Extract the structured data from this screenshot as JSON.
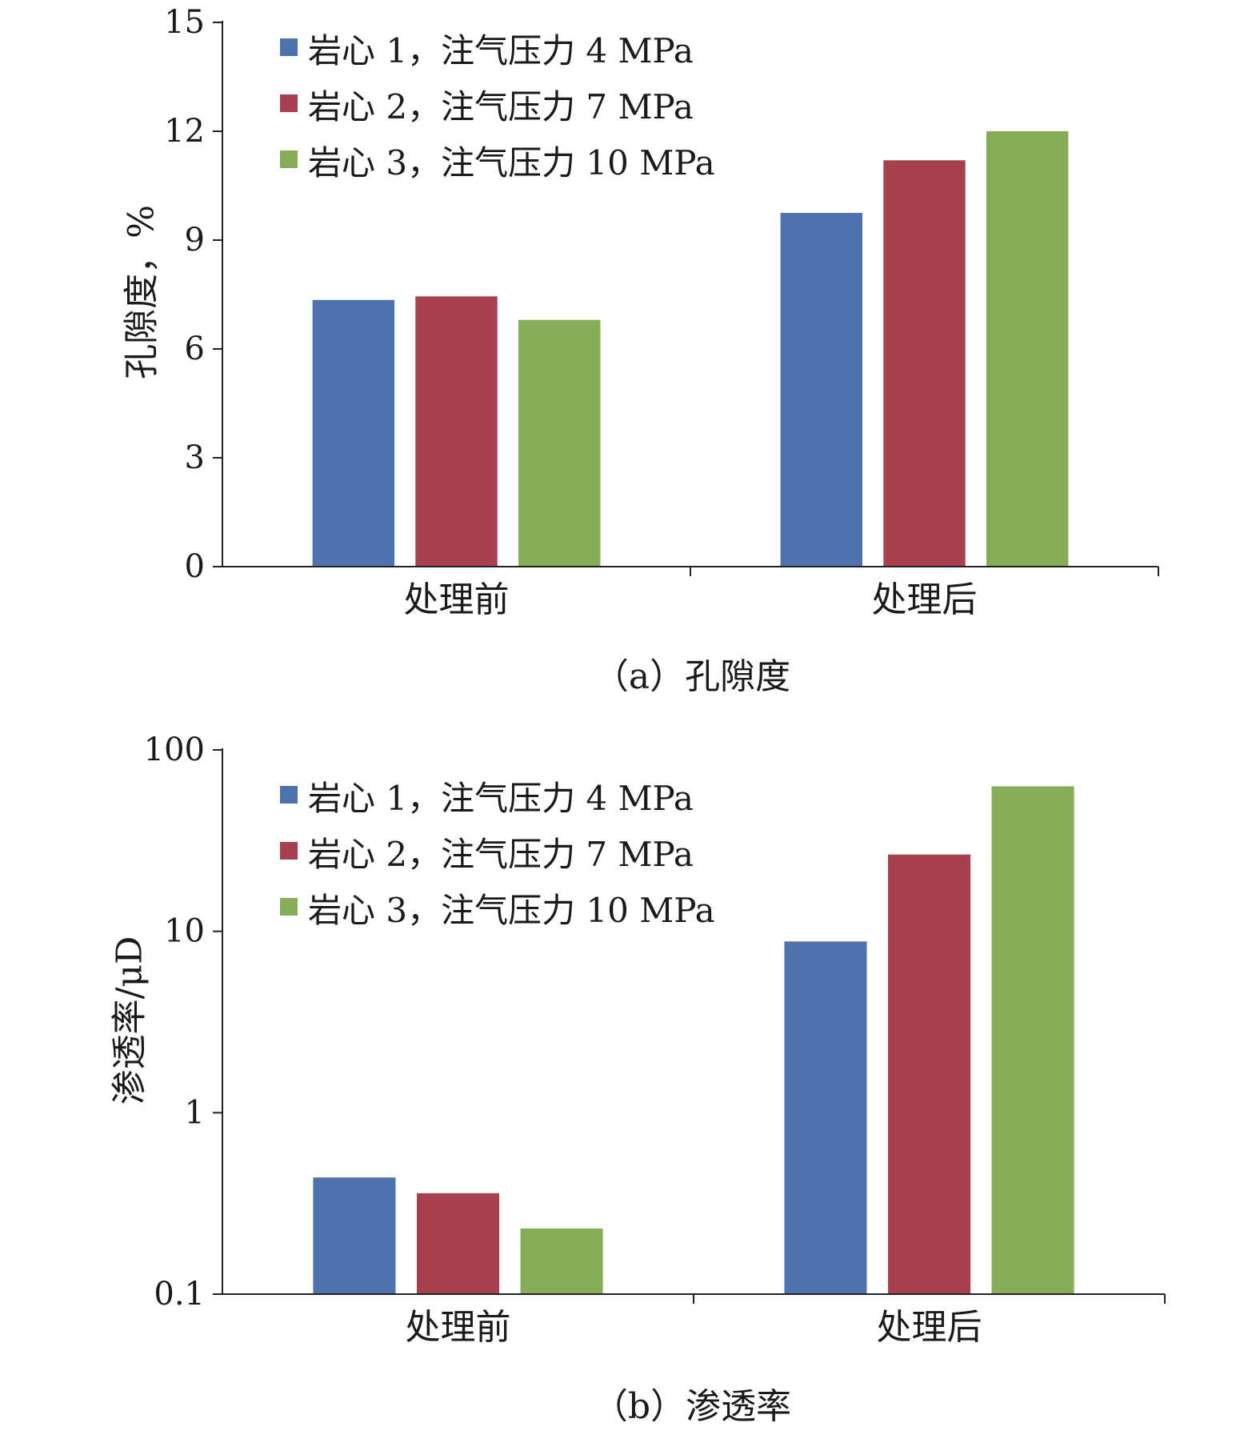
{
  "chart_data": [
    {
      "type": "bar",
      "caption": "（a）孔隙度",
      "categories": [
        "处理前",
        "处理后"
      ],
      "series": [
        {
          "name": "岩心 1，注气压力 4 MPa",
          "color": "#4e72ad",
          "values": [
            7.35,
            9.75
          ]
        },
        {
          "name": "岩心 2，注气压力 7 MPa",
          "color": "#a83f4e",
          "values": [
            7.45,
            11.2
          ]
        },
        {
          "name": "岩心 3，注气压力 10 MPa",
          "color": "#86ad55",
          "values": [
            6.8,
            12.0
          ]
        }
      ],
      "ylabel": "孔隙度，%",
      "ylim": [
        0,
        15
      ],
      "yscale": "linear",
      "yticks": [
        0,
        3,
        6,
        9,
        12,
        15
      ],
      "ytick_labels": [
        "0",
        "3",
        "6",
        "9",
        "12",
        "15"
      ],
      "legend_position": "top-left",
      "grid": false
    },
    {
      "type": "bar",
      "caption": "（b）渗透率",
      "categories": [
        "处理前",
        "处理后"
      ],
      "series": [
        {
          "name": "岩心 1，注气压力 4 MPa",
          "color": "#4e72ad",
          "values": [
            0.44,
            8.8
          ]
        },
        {
          "name": "岩心 2，注气压力 7 MPa",
          "color": "#a83f4e",
          "values": [
            0.36,
            26.5
          ]
        },
        {
          "name": "岩心 3，注气压力 10 MPa",
          "color": "#86ad55",
          "values": [
            0.23,
            63
          ]
        }
      ],
      "ylabel": "渗透率/μD",
      "ylim": [
        0.1,
        100
      ],
      "yscale": "log",
      "yticks": [
        0.1,
        1,
        10,
        100
      ],
      "ytick_labels": [
        "0.1",
        "1",
        "10",
        "100"
      ],
      "legend_position": "top-left",
      "grid": false
    }
  ]
}
